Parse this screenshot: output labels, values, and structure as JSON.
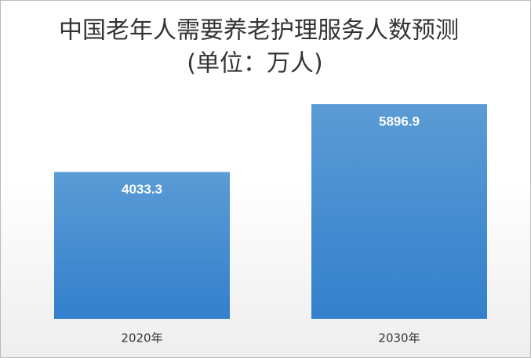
{
  "chart_data": {
    "type": "bar",
    "title": "中国老年人需要养老护理服务人数预测",
    "subtitle": "(单位：万人)",
    "categories": [
      "2020年",
      "2030年"
    ],
    "values": [
      4033.3,
      5896.9
    ],
    "color": "#5b9bd5"
  }
}
